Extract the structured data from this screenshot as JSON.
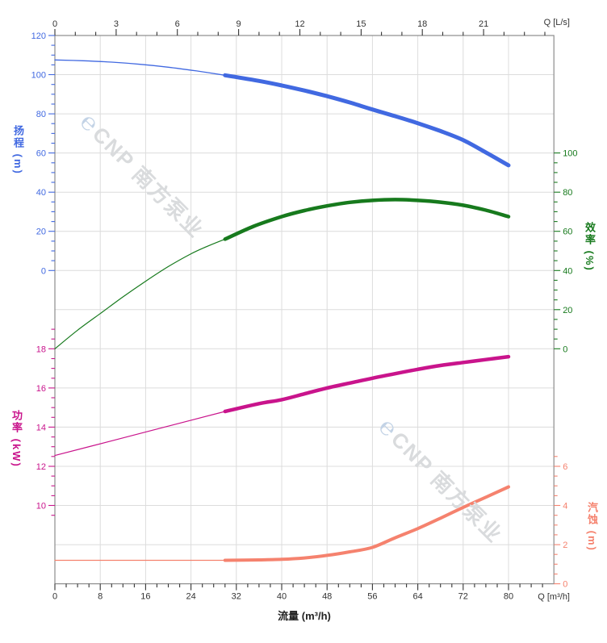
{
  "figure": {
    "watermark": {
      "logo_glyph": "℮",
      "text": "CNP 南方泵业"
    },
    "top_corner_label": "Q [L/s]",
    "bottom_corner_label": "Q [m³/h]",
    "bottom_axis_title": "流量 (m³/h)"
  },
  "chart_data": {
    "type": "line",
    "title": "",
    "grid": true,
    "legend": "none",
    "x_axis": {
      "bottom": {
        "label": "流量 (m³/h)",
        "unit": "Q [m³/h]",
        "majors": [
          0,
          8,
          16,
          24,
          32,
          40,
          48,
          56,
          64,
          72,
          80
        ],
        "minor_step": 2,
        "minor_max": 86,
        "range": [
          0,
          88
        ],
        "tick_color": "#333333"
      },
      "top": {
        "unit": "Q [L/s]",
        "majors": [
          0,
          3,
          6,
          9,
          12,
          15,
          18,
          21
        ],
        "minor_step": 1,
        "minor_max": 24,
        "range": [
          0,
          24.4
        ],
        "ls_to_m3h": 3.6,
        "tick_color": "#333333"
      }
    },
    "axes": [
      {
        "id": "head",
        "side": "left",
        "title": "扬程 (m)",
        "color": "#4169E1",
        "majors": [
          120,
          100,
          80,
          60,
          40,
          20,
          0
        ],
        "minor_step": 5,
        "minor_min": 0,
        "minor_max": 120,
        "range": [
          0,
          120
        ],
        "scale": {
          "ref_row": 0,
          "ref_value": 120,
          "units_per_row": 20
        }
      },
      {
        "id": "eff",
        "side": "right",
        "title": "效率 (%)",
        "color": "#177A1D",
        "majors": [
          100,
          80,
          60,
          40,
          20,
          0
        ],
        "minor_step": 5,
        "minor_min": 0,
        "minor_max": 100,
        "range": [
          0,
          100
        ],
        "scale": {
          "ref_row": 3,
          "ref_value": 100,
          "units_per_row": 20
        }
      },
      {
        "id": "power",
        "side": "left",
        "title": "功率 (kW)",
        "color": "#C9148C",
        "majors": [
          18,
          16,
          14,
          12,
          10
        ],
        "minor_step": 0.5,
        "minor_min": 9.5,
        "minor_max": 19,
        "range": [
          9.5,
          19
        ],
        "scale": {
          "ref_row": 8,
          "ref_value": 18,
          "units_per_row": 2
        }
      },
      {
        "id": "npsh",
        "side": "right",
        "title": "汽蚀 (m)",
        "color": "#F5826E",
        "majors": [
          6,
          4,
          2,
          0
        ],
        "minor_step": 0.5,
        "minor_min": 0,
        "minor_max": 6.5,
        "range": [
          0,
          7
        ],
        "scale": {
          "ref_row": 11,
          "ref_value": 6,
          "units_per_row": 2
        }
      }
    ],
    "series": [
      {
        "id": "head",
        "name": "扬程",
        "unit": "m",
        "color": "#4169E1",
        "width_thin": 1.3,
        "width_thick": 5,
        "bold_from": 30,
        "scale": {
          "ref_row": 0,
          "ref_value": 120,
          "units_per_row": 20
        },
        "points": [
          [
            0,
            107.5
          ],
          [
            5,
            107.1
          ],
          [
            10,
            106.4
          ],
          [
            15,
            105.3
          ],
          [
            20,
            103.8
          ],
          [
            25,
            101.9
          ],
          [
            30,
            99.7
          ],
          [
            36,
            96.8
          ],
          [
            40,
            94.5
          ],
          [
            44,
            91.9
          ],
          [
            48,
            89.0
          ],
          [
            52,
            85.8
          ],
          [
            56,
            82.2
          ],
          [
            60,
            78.8
          ],
          [
            64,
            75.2
          ],
          [
            68,
            71.2
          ],
          [
            72,
            66.6
          ],
          [
            76,
            60.3
          ],
          [
            80,
            53.7
          ]
        ]
      },
      {
        "id": "eff",
        "name": "效率",
        "unit": "%",
        "color": "#177A1D",
        "width_thin": 1.2,
        "width_thick": 4.5,
        "bold_from": 30,
        "scale": {
          "ref_row": 3,
          "ref_value": 100,
          "units_per_row": 20
        },
        "points": [
          [
            0,
            0
          ],
          [
            4,
            9.5
          ],
          [
            8,
            18
          ],
          [
            12,
            26.5
          ],
          [
            16,
            34.5
          ],
          [
            20,
            42
          ],
          [
            24,
            48.5
          ],
          [
            27,
            52.5
          ],
          [
            30,
            56
          ],
          [
            35,
            62.5
          ],
          [
            40,
            67.5
          ],
          [
            44,
            70.6
          ],
          [
            48,
            73
          ],
          [
            52,
            74.8
          ],
          [
            56,
            75.8
          ],
          [
            60,
            76.2
          ],
          [
            64,
            75.8
          ],
          [
            68,
            74.9
          ],
          [
            72,
            73.3
          ],
          [
            76,
            70.8
          ],
          [
            80,
            67.5
          ]
        ]
      },
      {
        "id": "power",
        "name": "功率",
        "unit": "kW",
        "color": "#C9148C",
        "width_thin": 1.2,
        "width_thick": 4.5,
        "bold_from": 30,
        "scale": {
          "ref_row": 8,
          "ref_value": 18,
          "units_per_row": 2
        },
        "points": [
          [
            0,
            12.55
          ],
          [
            10,
            13.3
          ],
          [
            20,
            14.05
          ],
          [
            30,
            14.8
          ],
          [
            36,
            15.2
          ],
          [
            40,
            15.4
          ],
          [
            44,
            15.7
          ],
          [
            48,
            16.0
          ],
          [
            52,
            16.25
          ],
          [
            56,
            16.5
          ],
          [
            60,
            16.73
          ],
          [
            64,
            16.95
          ],
          [
            68,
            17.15
          ],
          [
            72,
            17.3
          ],
          [
            76,
            17.45
          ],
          [
            80,
            17.6
          ]
        ]
      },
      {
        "id": "npsh",
        "name": "汽蚀",
        "unit": "m",
        "color": "#F5826E",
        "width_thin": 1.2,
        "width_thick": 4,
        "bold_from": 30,
        "scale": {
          "ref_row": 11,
          "ref_value": 6,
          "units_per_row": 2
        },
        "points": [
          [
            0,
            1.2
          ],
          [
            10,
            1.2
          ],
          [
            20,
            1.2
          ],
          [
            30,
            1.2
          ],
          [
            36,
            1.22
          ],
          [
            40,
            1.25
          ],
          [
            44,
            1.32
          ],
          [
            48,
            1.45
          ],
          [
            52,
            1.63
          ],
          [
            56,
            1.86
          ],
          [
            60,
            2.35
          ],
          [
            64,
            2.82
          ],
          [
            68,
            3.35
          ],
          [
            72,
            3.9
          ],
          [
            76,
            4.42
          ],
          [
            80,
            4.95
          ]
        ]
      }
    ],
    "style": {
      "grid_color": "#dcdcdc",
      "border_color": "#8c8c8c"
    }
  }
}
